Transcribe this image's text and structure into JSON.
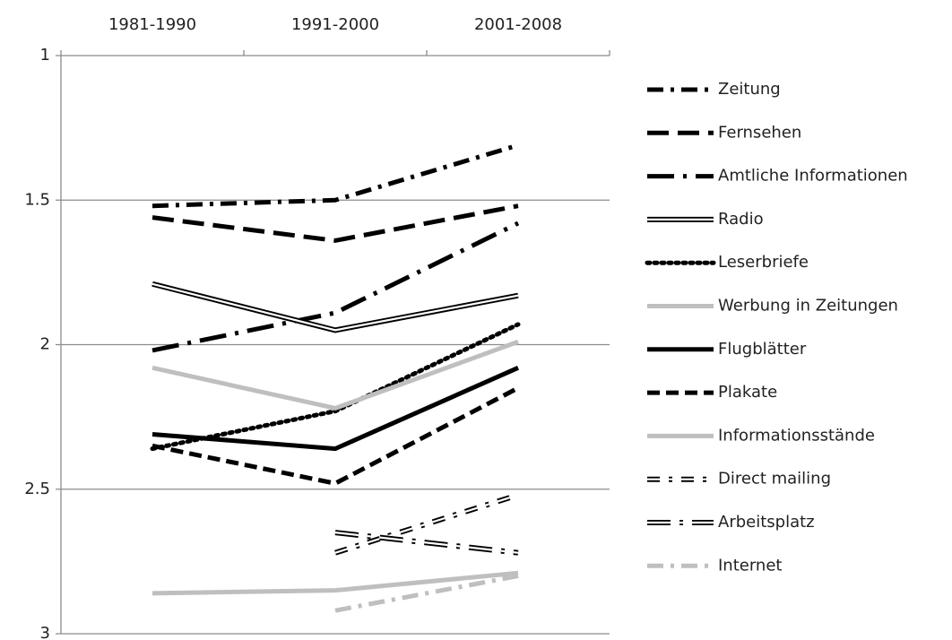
{
  "chart_data": {
    "type": "line",
    "categories": [
      "1981-1990",
      "1991-2000",
      "2001-2008"
    ],
    "ylim": [
      1,
      3
    ],
    "yticks": [
      1,
      1.5,
      2,
      2.5,
      3
    ],
    "y_inverted": true,
    "grid": true,
    "legend": "right",
    "series": [
      {
        "name": "Zeitung",
        "color": "#000000",
        "style": "dash-dot",
        "values": [
          1.52,
          1.5,
          1.31
        ]
      },
      {
        "name": "Fernsehen",
        "color": "#000000",
        "style": "long-dash",
        "values": [
          1.56,
          1.64,
          1.52
        ]
      },
      {
        "name": "Amtliche Informationen",
        "color": "#000000",
        "style": "long-dash-dot",
        "values": [
          2.02,
          1.89,
          1.58
        ]
      },
      {
        "name": "Radio",
        "color": "#000000",
        "style": "double",
        "values": [
          1.79,
          1.95,
          1.83
        ]
      },
      {
        "name": "Leserbriefe",
        "color": "#000000",
        "style": "dotted",
        "values": [
          2.36,
          2.23,
          1.93
        ]
      },
      {
        "name": "Werbung in Zeitungen",
        "color": "#bfbfbf",
        "style": "solid",
        "values": [
          2.08,
          2.22,
          1.99
        ]
      },
      {
        "name": "Flugblätter",
        "color": "#000000",
        "style": "solid",
        "values": [
          2.31,
          2.36,
          2.08
        ]
      },
      {
        "name": "Plakate",
        "color": "#000000",
        "style": "dash",
        "values": [
          2.35,
          2.48,
          2.15
        ]
      },
      {
        "name": "Informationsstände",
        "color": "#bfbfbf",
        "style": "solid",
        "values": [
          2.86,
          2.85,
          2.79
        ]
      },
      {
        "name": "Direct mailing",
        "color": "#000000",
        "style": "double-dash-dot",
        "values": [
          null,
          2.72,
          2.52
        ]
      },
      {
        "name": "Arbeitsplatz",
        "color": "#000000",
        "style": "double-long-dash-dot",
        "values": [
          null,
          2.65,
          2.72
        ]
      },
      {
        "name": "Internet",
        "color": "#bfbfbf",
        "style": "dash-dot",
        "values": [
          null,
          2.92,
          2.8
        ]
      }
    ]
  }
}
